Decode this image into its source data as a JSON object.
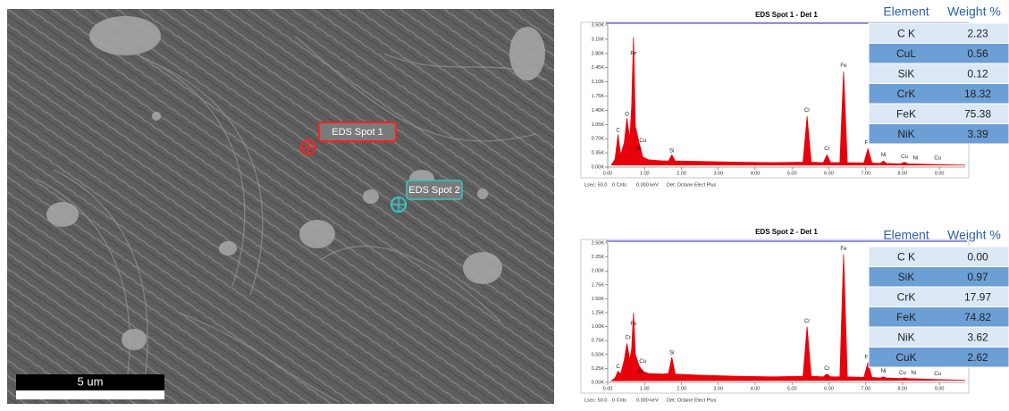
{
  "image": {
    "spots": [
      "EDS Spot 1",
      "EDS Spot 2"
    ],
    "scale_bar": "5 um"
  },
  "chart_data": [
    {
      "type": "area",
      "title": "EDS Spot 1 - Det 1",
      "color": "#e8000b",
      "x": [
        0.1,
        0.2,
        0.28,
        0.35,
        0.45,
        0.52,
        0.6,
        0.65,
        0.7,
        0.75,
        0.85,
        0.95,
        1.1,
        1.5,
        1.65,
        1.74,
        1.83,
        2.5,
        3.5,
        4.5,
        5.3,
        5.41,
        5.52,
        5.85,
        5.95,
        6.05,
        6.3,
        6.4,
        6.5,
        6.95,
        7.06,
        7.17,
        7.4,
        7.48,
        7.56,
        7.95,
        8.05,
        8.15,
        9.0,
        9.7
      ],
      "values": [
        50,
        200,
        800,
        300,
        600,
        1200,
        700,
        1500,
        3200,
        1000,
        600,
        250,
        180,
        150,
        150,
        300,
        150,
        140,
        120,
        110,
        120,
        1250,
        120,
        110,
        300,
        110,
        110,
        2350,
        110,
        100,
        450,
        100,
        90,
        150,
        90,
        80,
        120,
        80,
        60,
        50
      ],
      "xlim": [
        0,
        9.7
      ],
      "ylim": [
        0,
        3500
      ],
      "xticks": [
        {
          "value": 0,
          "label": "0.00"
        },
        {
          "value": 1,
          "label": "1.00"
        },
        {
          "value": 2,
          "label": "2.00"
        },
        {
          "value": 3,
          "label": "3.00"
        },
        {
          "value": 4,
          "label": "4.00"
        },
        {
          "value": 5,
          "label": "5.00"
        },
        {
          "value": 6,
          "label": "6.00"
        },
        {
          "value": 7,
          "label": "7.00"
        },
        {
          "value": 8,
          "label": "8.00"
        },
        {
          "value": 9,
          "label": "9.00"
        }
      ],
      "yticks": [
        {
          "value": 0,
          "label": "0.00K"
        },
        {
          "value": 350,
          "label": "0.35K"
        },
        {
          "value": 700,
          "label": "0.70K"
        },
        {
          "value": 1050,
          "label": "1.05K"
        },
        {
          "value": 1400,
          "label": "1.40K"
        },
        {
          "value": 1750,
          "label": "1.75K"
        },
        {
          "value": 2100,
          "label": "2.10K"
        },
        {
          "value": 2450,
          "label": "2.45K"
        },
        {
          "value": 2800,
          "label": "2.80K"
        },
        {
          "value": 3150,
          "label": "3.15K"
        },
        {
          "value": 3500,
          "label": "3.50K"
        }
      ],
      "annotations": [
        {
          "text": "C",
          "x": 0.28,
          "y": 900
        },
        {
          "text": "O",
          "x": 0.52,
          "y": 1300
        },
        {
          "text": "Fe",
          "x": 0.7,
          "y": 2800
        },
        {
          "text": "Cu",
          "x": 0.95,
          "y": 650
        },
        {
          "text": "Ni",
          "x": 0.85,
          "y": 450
        },
        {
          "text": "Si",
          "x": 1.74,
          "y": 400
        },
        {
          "text": "Cr",
          "x": 5.41,
          "y": 1400
        },
        {
          "text": "Cr",
          "x": 5.95,
          "y": 450
        },
        {
          "text": "Fe",
          "x": 6.4,
          "y": 2500
        },
        {
          "text": "Fe",
          "x": 7.06,
          "y": 600
        },
        {
          "text": "Ni",
          "x": 7.48,
          "y": 300
        },
        {
          "text": "Cu",
          "x": 8.05,
          "y": 250
        },
        {
          "text": "Ni",
          "x": 8.35,
          "y": 220
        },
        {
          "text": "Cu",
          "x": 8.95,
          "y": 220
        }
      ],
      "footer": [
        "Lsec: 50.0",
        "0 Cnts",
        "0.000 keV",
        "Det: Octane Elect Plus"
      ]
    },
    {
      "type": "area",
      "title": "EDS Spot 2 - Det 1",
      "color": "#e8000b",
      "x": [
        0.1,
        0.2,
        0.28,
        0.35,
        0.45,
        0.52,
        0.6,
        0.65,
        0.7,
        0.75,
        0.85,
        0.95,
        1.1,
        1.5,
        1.65,
        1.74,
        1.83,
        2.5,
        3.5,
        4.5,
        5.3,
        5.41,
        5.52,
        5.85,
        5.95,
        6.05,
        6.3,
        6.4,
        6.5,
        6.95,
        7.06,
        7.17,
        7.4,
        7.48,
        7.56,
        7.95,
        8.05,
        8.15,
        9.0,
        9.7
      ],
      "values": [
        30,
        80,
        200,
        150,
        400,
        700,
        400,
        600,
        1250,
        500,
        300,
        200,
        160,
        150,
        160,
        450,
        150,
        130,
        110,
        100,
        110,
        1000,
        110,
        100,
        150,
        100,
        100,
        2300,
        100,
        90,
        350,
        90,
        80,
        100,
        80,
        70,
        80,
        70,
        50,
        40
      ],
      "xlim": [
        0,
        9.7
      ],
      "ylim": [
        0,
        2500
      ],
      "xticks": [
        {
          "value": 0,
          "label": "0.00"
        },
        {
          "value": 1,
          "label": "1.00"
        },
        {
          "value": 2,
          "label": "2.00"
        },
        {
          "value": 3,
          "label": "3.00"
        },
        {
          "value": 4,
          "label": "4.00"
        },
        {
          "value": 5,
          "label": "5.00"
        },
        {
          "value": 6,
          "label": "6.00"
        },
        {
          "value": 7,
          "label": "7.00"
        },
        {
          "value": 8,
          "label": "8.00"
        },
        {
          "value": 9,
          "label": "9.00"
        }
      ],
      "yticks": [
        {
          "value": 0,
          "label": "0.00K"
        },
        {
          "value": 250,
          "label": "0.25K"
        },
        {
          "value": 500,
          "label": "0.50K"
        },
        {
          "value": 750,
          "label": "0.75K"
        },
        {
          "value": 1000,
          "label": "1.00K"
        },
        {
          "value": 1250,
          "label": "1.25K"
        },
        {
          "value": 1500,
          "label": "1.50K"
        },
        {
          "value": 1750,
          "label": "1.75K"
        },
        {
          "value": 2000,
          "label": "2.00K"
        },
        {
          "value": 2250,
          "label": "2.25K"
        },
        {
          "value": 2500,
          "label": "2.50K"
        }
      ],
      "annotations": [
        {
          "text": "C",
          "x": 0.28,
          "y": 280
        },
        {
          "text": "Cr",
          "x": 0.55,
          "y": 800
        },
        {
          "text": "Fe",
          "x": 0.7,
          "y": 1050
        },
        {
          "text": "Cu",
          "x": 0.95,
          "y": 380
        },
        {
          "text": "Ni",
          "x": 0.9,
          "y": 190
        },
        {
          "text": "Si",
          "x": 1.74,
          "y": 530
        },
        {
          "text": "Cr",
          "x": 5.41,
          "y": 1100
        },
        {
          "text": "Cr",
          "x": 5.95,
          "y": 250
        },
        {
          "text": "Fe",
          "x": 6.4,
          "y": 2400
        },
        {
          "text": "Fe",
          "x": 7.06,
          "y": 450
        },
        {
          "text": "Ni",
          "x": 7.48,
          "y": 200
        },
        {
          "text": "Cu",
          "x": 8.0,
          "y": 170
        },
        {
          "text": "Ni",
          "x": 8.3,
          "y": 170
        },
        {
          "text": "Cu",
          "x": 8.95,
          "y": 150
        }
      ],
      "footer": [
        "Lsec: 50.0",
        "0 Cnts",
        "0.000 keV",
        "Det: Octane Elect Plus"
      ]
    }
  ],
  "tables": [
    {
      "header": [
        "Element",
        "Weight %"
      ],
      "rows": [
        [
          "C K",
          "2.23"
        ],
        [
          "CuL",
          "0.56"
        ],
        [
          "SiK",
          "0.12"
        ],
        [
          "CrK",
          "18.32"
        ],
        [
          "FeK",
          "75.38"
        ],
        [
          "NiK",
          "3.39"
        ]
      ]
    },
    {
      "header": [
        "Element",
        "Weight %"
      ],
      "rows": [
        [
          "C K",
          "0.00"
        ],
        [
          "SiK",
          "0.97"
        ],
        [
          "CrK",
          "17.97"
        ],
        [
          "FeK",
          "74.82"
        ],
        [
          "NiK",
          "3.62"
        ],
        [
          "CuK",
          "2.62"
        ]
      ]
    }
  ]
}
